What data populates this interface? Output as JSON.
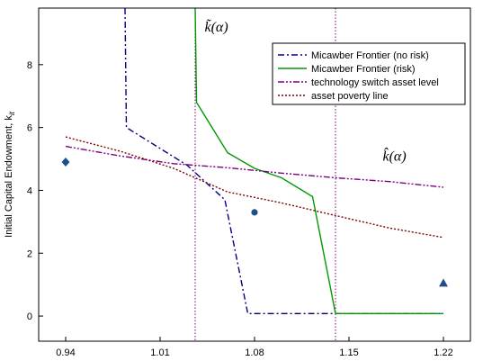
{
  "chart_data": {
    "type": "line",
    "xlabel": "",
    "ylabel": "Initial Capital Endowment, k",
    "ylabel_sub": "it",
    "xlim": [
      0.92,
      1.24
    ],
    "ylim": [
      -0.8,
      9.8
    ],
    "xticks": [
      0.94,
      1.01,
      1.08,
      1.15,
      1.22
    ],
    "xtick_labels": [
      "0.94",
      "1.01",
      "1.08",
      "1.15",
      "1.22"
    ],
    "yticks": [
      0,
      2,
      4,
      6,
      8
    ],
    "ytick_labels": [
      "0",
      "2",
      "4",
      "6",
      "8"
    ],
    "grid": false,
    "legend_position": "top-right",
    "series": [
      {
        "name": "Micawber Frontier (no risk)",
        "color": "#00007f",
        "style": "dashdot",
        "points": [
          [
            0.984,
            9.8
          ],
          [
            0.985,
            6.0
          ],
          [
            1.03,
            4.8
          ],
          [
            1.058,
            3.7
          ],
          [
            1.075,
            0.08
          ],
          [
            1.14,
            0.08
          ],
          [
            1.22,
            0.08
          ]
        ]
      },
      {
        "name": "Micawber Frontier (risk)",
        "color": "#009900",
        "style": "solid",
        "points": [
          [
            1.036,
            9.8
          ],
          [
            1.037,
            6.8
          ],
          [
            1.06,
            5.2
          ],
          [
            1.08,
            4.7
          ],
          [
            1.1,
            4.4
          ],
          [
            1.123,
            3.8
          ],
          [
            1.14,
            0.08
          ],
          [
            1.22,
            0.08
          ]
        ]
      },
      {
        "name": "technology switch asset level",
        "color": "#7f007f",
        "style": "dashdotdot",
        "points": [
          [
            0.94,
            5.4
          ],
          [
            0.98,
            5.1
          ],
          [
            1.02,
            4.85
          ],
          [
            1.06,
            4.72
          ],
          [
            1.1,
            4.55
          ],
          [
            1.14,
            4.4
          ],
          [
            1.18,
            4.28
          ],
          [
            1.22,
            4.1
          ]
        ]
      },
      {
        "name": "asset poverty line",
        "color": "#7f0000",
        "style": "dotted",
        "points": [
          [
            0.94,
            5.7
          ],
          [
            0.98,
            5.25
          ],
          [
            1.02,
            4.7
          ],
          [
            1.06,
            3.95
          ],
          [
            1.1,
            3.6
          ],
          [
            1.14,
            3.2
          ],
          [
            1.18,
            2.8
          ],
          [
            1.22,
            2.5
          ]
        ]
      }
    ],
    "vlines": [
      {
        "x": 1.036,
        "color": "#7f007f"
      },
      {
        "x": 1.14,
        "color": "#7f007f"
      }
    ],
    "markers": [
      {
        "shape": "diamond",
        "x": 0.94,
        "y": 4.9,
        "color": "#1f4e8c"
      },
      {
        "shape": "circle",
        "x": 1.08,
        "y": 3.3,
        "color": "#1f4e8c"
      },
      {
        "shape": "triangle",
        "x": 1.22,
        "y": 1.05,
        "color": "#1f4e8c"
      }
    ],
    "annotations": [
      {
        "text": "k̃(α)",
        "x": 1.043,
        "y": 9.05
      },
      {
        "text": "k̂(α)",
        "x": 1.175,
        "y": 4.95
      }
    ]
  }
}
